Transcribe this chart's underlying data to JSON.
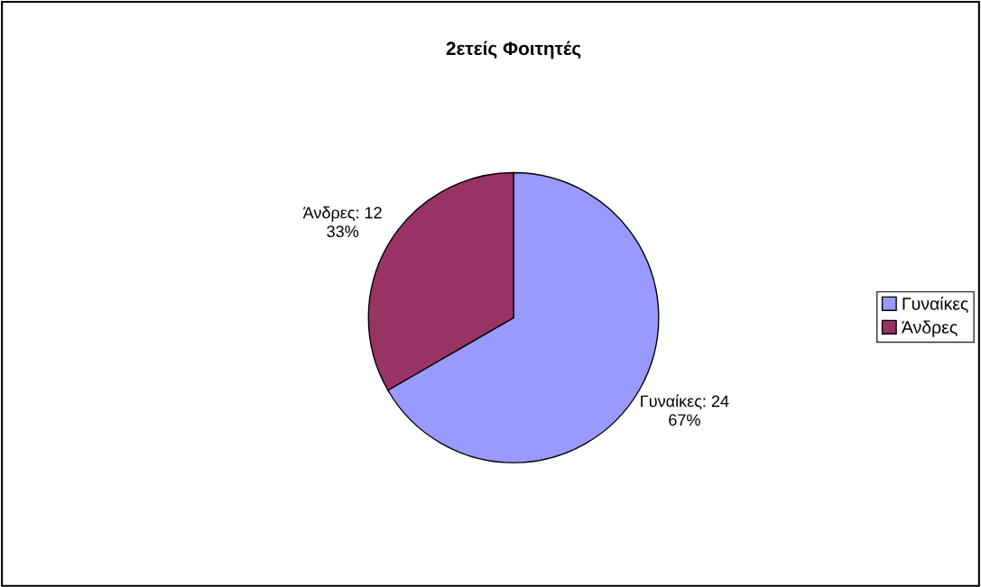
{
  "chart_data": {
    "type": "pie",
    "title": "2ετείς Φοιτητές",
    "categories": [
      "Γυναίκες",
      "Άνδρες"
    ],
    "values": [
      24,
      12
    ],
    "colors": [
      "#9999ff",
      "#993366"
    ],
    "value_labels": [
      "Γυναίκες: 24\n67%",
      "Άνδρες: 12\n33%"
    ],
    "legend": "right"
  }
}
